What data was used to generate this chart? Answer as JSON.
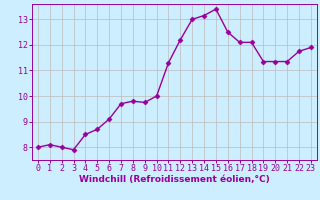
{
  "x": [
    0,
    1,
    2,
    3,
    4,
    5,
    6,
    7,
    8,
    9,
    10,
    11,
    12,
    13,
    14,
    15,
    16,
    17,
    18,
    19,
    20,
    21,
    22,
    23
  ],
  "y": [
    8.0,
    8.1,
    8.0,
    7.9,
    8.5,
    8.7,
    9.1,
    9.7,
    9.8,
    9.75,
    10.0,
    11.3,
    12.2,
    13.0,
    13.15,
    13.4,
    12.5,
    12.1,
    12.1,
    11.35,
    11.35,
    11.35,
    11.75,
    11.9
  ],
  "line_color": "#990099",
  "marker": "D",
  "marker_size": 2.5,
  "line_width": 1.0,
  "bg_color": "#cceeff",
  "grid_color": "#bbbbbb",
  "xlabel": "Windchill (Refroidissement éolien,°C)",
  "xlabel_color": "#990099",
  "xlabel_fontsize": 6.5,
  "tick_color": "#990099",
  "tick_fontsize": 6,
  "ylim": [
    7.5,
    13.6
  ],
  "xlim": [
    -0.5,
    23.5
  ],
  "yticks": [
    8,
    9,
    10,
    11,
    12,
    13
  ],
  "xticks": [
    0,
    1,
    2,
    3,
    4,
    5,
    6,
    7,
    8,
    9,
    10,
    11,
    12,
    13,
    14,
    15,
    16,
    17,
    18,
    19,
    20,
    21,
    22,
    23
  ]
}
